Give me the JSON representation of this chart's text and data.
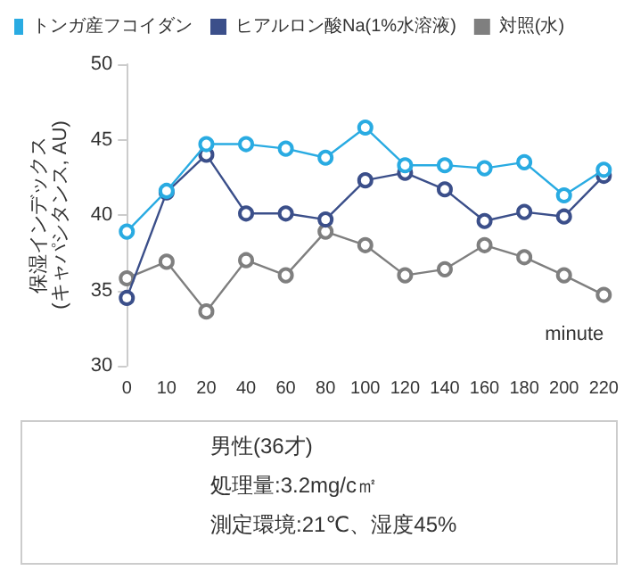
{
  "chart_data": {
    "type": "line",
    "xlabel": "minute",
    "ylabel": "保湿インデックス\n(キャパシタンス, AU)",
    "categories": [
      "0",
      "10",
      "20",
      "40",
      "60",
      "80",
      "100",
      "120",
      "140",
      "160",
      "180",
      "200",
      "220"
    ],
    "series": [
      {
        "name": "トンガ産フコイダン",
        "color": "#29abe2",
        "values": [
          38.9,
          41.6,
          44.7,
          44.7,
          44.4,
          43.8,
          45.8,
          43.3,
          43.3,
          43.1,
          43.5,
          41.3,
          43.0
        ]
      },
      {
        "name": "ヒアルロン酸Na(1%水溶液)",
        "color": "#3b4f8a",
        "values": [
          34.5,
          41.5,
          44.0,
          40.1,
          40.1,
          39.7,
          42.3,
          42.8,
          41.7,
          39.6,
          40.2,
          39.9,
          42.6
        ]
      },
      {
        "name": "対照(水)",
        "color": "#7f7f7f",
        "values": [
          35.8,
          36.9,
          33.6,
          37.0,
          36.0,
          38.9,
          38.0,
          36.0,
          36.4,
          38.0,
          37.2,
          36.0,
          34.7
        ]
      }
    ],
    "ylim": [
      30,
      50
    ],
    "yticks": [
      30,
      35,
      40,
      45,
      50
    ],
    "grid": false,
    "legend": "top",
    "marker": "circle",
    "annotations": [
      "男性(36才)",
      "処理量:3.2mg/c㎡",
      "測定環境:21℃、湿度45%"
    ]
  }
}
